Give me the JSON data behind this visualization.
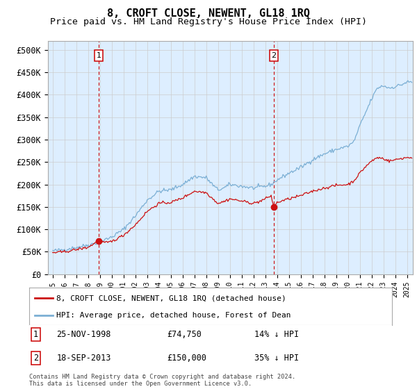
{
  "title": "8, CROFT CLOSE, NEWENT, GL18 1RQ",
  "subtitle": "Price paid vs. HM Land Registry's House Price Index (HPI)",
  "title_fontsize": 11,
  "subtitle_fontsize": 9.5,
  "ylabel_ticks": [
    "£0",
    "£50K",
    "£100K",
    "£150K",
    "£200K",
    "£250K",
    "£300K",
    "£350K",
    "£400K",
    "£450K",
    "£500K"
  ],
  "ytick_values": [
    0,
    50000,
    100000,
    150000,
    200000,
    250000,
    300000,
    350000,
    400000,
    450000,
    500000
  ],
  "ylim": [
    0,
    520000
  ],
  "sale1_date_num": 1998.9,
  "sale1_price": 74750,
  "sale1_label": "1",
  "sale1_date_str": "25-NOV-1998",
  "sale1_price_str": "£74,750",
  "sale1_pct_str": "14% ↓ HPI",
  "sale2_date_num": 2013.72,
  "sale2_price": 150000,
  "sale2_label": "2",
  "sale2_date_str": "18-SEP-2013",
  "sale2_price_str": "£150,000",
  "sale2_pct_str": "35% ↓ HPI",
  "hpi_color": "#7bafd4",
  "price_color": "#cc1111",
  "vline_color": "#cc0000",
  "grid_color": "#cccccc",
  "chart_bg": "#ddeeff",
  "background_color": "#ffffff",
  "legend_label_price": "8, CROFT CLOSE, NEWENT, GL18 1RQ (detached house)",
  "legend_label_hpi": "HPI: Average price, detached house, Forest of Dean",
  "footer": "Contains HM Land Registry data © Crown copyright and database right 2024.\nThis data is licensed under the Open Government Licence v3.0.",
  "xtick_years": [
    "1995",
    "1996",
    "1997",
    "1998",
    "1999",
    "2000",
    "2001",
    "2002",
    "2003",
    "2004",
    "2005",
    "2006",
    "2007",
    "2008",
    "2009",
    "2010",
    "2011",
    "2012",
    "2013",
    "2014",
    "2015",
    "2016",
    "2017",
    "2018",
    "2019",
    "2020",
    "2021",
    "2022",
    "2023",
    "2024",
    "2025"
  ],
  "xlim": [
    1994.6,
    2025.5
  ],
  "hpi_keypoints": [
    [
      1995.0,
      52000
    ],
    [
      1996.0,
      55000
    ],
    [
      1997.0,
      60000
    ],
    [
      1998.0,
      65000
    ],
    [
      1999.0,
      72000
    ],
    [
      2000.0,
      83000
    ],
    [
      2001.0,
      100000
    ],
    [
      2002.0,
      130000
    ],
    [
      2003.0,
      165000
    ],
    [
      2004.0,
      185000
    ],
    [
      2005.0,
      188000
    ],
    [
      2006.0,
      200000
    ],
    [
      2007.0,
      218000
    ],
    [
      2008.0,
      215000
    ],
    [
      2008.7,
      195000
    ],
    [
      2009.0,
      188000
    ],
    [
      2009.5,
      192000
    ],
    [
      2010.0,
      200000
    ],
    [
      2011.0,
      196000
    ],
    [
      2012.0,
      192000
    ],
    [
      2013.0,
      196000
    ],
    [
      2013.5,
      200000
    ],
    [
      2014.0,
      210000
    ],
    [
      2015.0,
      225000
    ],
    [
      2016.0,
      238000
    ],
    [
      2017.0,
      255000
    ],
    [
      2018.0,
      268000
    ],
    [
      2019.0,
      278000
    ],
    [
      2020.0,
      285000
    ],
    [
      2020.5,
      295000
    ],
    [
      2021.0,
      330000
    ],
    [
      2021.5,
      360000
    ],
    [
      2022.0,
      390000
    ],
    [
      2022.5,
      415000
    ],
    [
      2023.0,
      420000
    ],
    [
      2023.5,
      415000
    ],
    [
      2024.0,
      418000
    ],
    [
      2024.5,
      422000
    ],
    [
      2025.0,
      428000
    ]
  ],
  "price_keypoints": [
    [
      1995.0,
      48000
    ],
    [
      1996.0,
      50000
    ],
    [
      1997.0,
      55000
    ],
    [
      1998.0,
      60000
    ],
    [
      1998.9,
      74750
    ],
    [
      1999.2,
      72000
    ],
    [
      1999.5,
      70000
    ],
    [
      2000.0,
      73000
    ],
    [
      2001.0,
      87000
    ],
    [
      2002.0,
      110000
    ],
    [
      2003.0,
      140000
    ],
    [
      2004.0,
      158000
    ],
    [
      2005.0,
      160000
    ],
    [
      2006.0,
      170000
    ],
    [
      2007.0,
      185000
    ],
    [
      2008.0,
      182000
    ],
    [
      2008.7,
      165000
    ],
    [
      2009.0,
      158000
    ],
    [
      2009.5,
      162000
    ],
    [
      2010.0,
      168000
    ],
    [
      2011.0,
      163000
    ],
    [
      2012.0,
      158000
    ],
    [
      2012.5,
      162000
    ],
    [
      2013.0,
      168000
    ],
    [
      2013.5,
      175000
    ],
    [
      2013.72,
      150000
    ],
    [
      2013.9,
      155000
    ],
    [
      2014.0,
      160000
    ],
    [
      2015.0,
      168000
    ],
    [
      2016.0,
      175000
    ],
    [
      2017.0,
      185000
    ],
    [
      2018.0,
      192000
    ],
    [
      2019.0,
      198000
    ],
    [
      2020.0,
      200000
    ],
    [
      2020.5,
      208000
    ],
    [
      2021.0,
      225000
    ],
    [
      2021.5,
      240000
    ],
    [
      2022.0,
      252000
    ],
    [
      2022.5,
      260000
    ],
    [
      2023.0,
      258000
    ],
    [
      2023.5,
      252000
    ],
    [
      2024.0,
      255000
    ],
    [
      2024.5,
      258000
    ],
    [
      2025.0,
      260000
    ]
  ]
}
